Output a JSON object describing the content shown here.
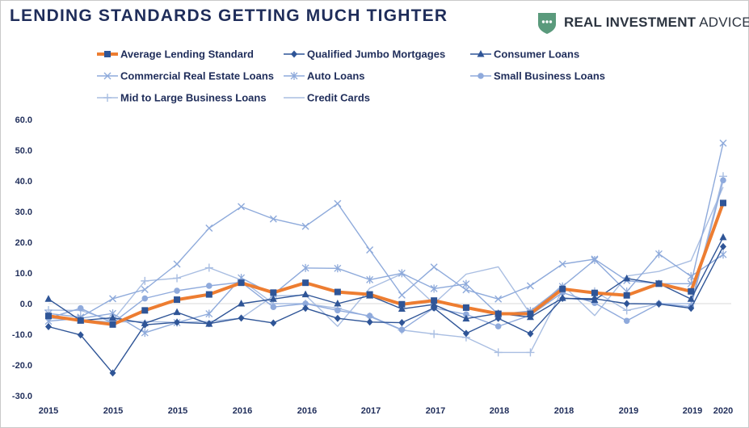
{
  "header": {
    "title": "LENDING STANDARDS GETTING MUCH TIGHTER",
    "brand_bold": "REAL INVESTMENT",
    "brand_light": " ADVICE",
    "brand_icon": "shield-logo-icon",
    "brand_color": "#5a9a7c"
  },
  "chart_data": {
    "type": "line",
    "x": [
      "2015 Q1",
      "2015 Q2",
      "2015 Q3",
      "2015 Q4",
      "2016 Q1",
      "2016 Q2",
      "2016 Q3",
      "2016 Q4",
      "2017 Q1",
      "2017 Q2",
      "2017 Q3",
      "2017 Q4",
      "2018 Q1",
      "2018 Q2",
      "2018 Q3",
      "2018 Q4",
      "2019 Q1",
      "2019 Q2",
      "2019 Q3",
      "2019 Q4",
      "2020 Q1",
      "2020 Q2"
    ],
    "x_tick_labels": [
      "2015",
      "2015",
      "2015",
      "2016",
      "2016",
      "2017",
      "2017",
      "2018",
      "2018",
      "2019",
      "2019",
      "2020"
    ],
    "y_tick_labels": [
      "60.0",
      "50.0",
      "40.0",
      "30.0",
      "20.0",
      "10.0",
      "0.0",
      "-10.0",
      "-20.0",
      "-30.0"
    ],
    "ylim": [
      -30,
      60
    ],
    "grid": "horizontal at 0 only",
    "legend_position": "top",
    "series": [
      {
        "name": "Average Lending Standard",
        "color": "#ed7d31",
        "width": 4,
        "marker": "square",
        "values": [
          -4,
          -5.5,
          -6.8,
          -2.2,
          1.3,
          3,
          6.8,
          3.6,
          6.8,
          3.8,
          3,
          -0.2,
          1,
          -1.3,
          -3.3,
          -3.3,
          4.8,
          3.5,
          2.7,
          6.5,
          4,
          32.8
        ]
      },
      {
        "name": "Qualified Jumbo Mortgages",
        "color": "#2f5597",
        "width": 1.4,
        "marker": "diamond",
        "values": [
          -7.5,
          -10.2,
          -22.6,
          -6.9,
          -6.1,
          -6.5,
          -4.7,
          -6.3,
          -1.5,
          -4.8,
          -6,
          -6.2,
          -1.4,
          -9.7,
          -4.8,
          -9.8,
          1.7,
          1.6,
          0,
          -0.1,
          -1.5,
          18.6
        ]
      },
      {
        "name": "Consumer Loans",
        "color": "#2f5597",
        "width": 1.4,
        "marker": "triangle",
        "values": [
          1.5,
          -5.5,
          -4.6,
          -6.4,
          -2.8,
          -6.6,
          0,
          1.5,
          3,
          0,
          2.6,
          -1.7,
          -0.3,
          -4.9,
          -3.2,
          -4.4,
          1.8,
          1.2,
          8.2,
          6.5,
          1.5,
          21.6
        ]
      },
      {
        "name": "Commercial Real Estate Loans",
        "color": "#8eaadb",
        "width": 1.4,
        "marker": "x",
        "values": [
          -3.2,
          -4.4,
          1.6,
          4.6,
          12.9,
          24.6,
          31.6,
          27.6,
          25.2,
          32.6,
          17.5,
          2.8,
          11.9,
          4.5,
          1.5,
          5.8,
          12.9,
          14.5,
          7.5,
          6.5,
          6.5,
          52.3
        ]
      },
      {
        "name": "Auto Loans",
        "color": "#8eaadb",
        "width": 1.4,
        "marker": "asterisk",
        "values": [
          -5.7,
          -4.8,
          -3.2,
          -9.5,
          -6.2,
          -3.3,
          8.4,
          3,
          11.6,
          11.5,
          7.8,
          9.9,
          4.9,
          6.4,
          -3.5,
          -2.4,
          5.6,
          14.2,
          3.9,
          16.2,
          8.9,
          16
        ]
      },
      {
        "name": "Small Business Loans",
        "color": "#8faadc",
        "width": 1.4,
        "marker": "circle",
        "values": [
          -4.7,
          -1.5,
          -6.3,
          1.7,
          4.2,
          5.8,
          7,
          -1.1,
          0,
          -2.2,
          -4,
          -8.5,
          -1.4,
          -3.5,
          -7.4,
          -3.8,
          3.6,
          0.2,
          -5.6,
          0,
          -1,
          40.2
        ]
      },
      {
        "name": "Mid to Large Business Loans",
        "color": "#a9bee2",
        "width": 1.4,
        "marker": "plus",
        "values": [
          -2.1,
          -2.2,
          -5.5,
          7.4,
          8.3,
          11.7,
          7.7,
          0,
          0,
          -1.5,
          -4.2,
          -8.6,
          -9.9,
          -11,
          -15.9,
          -15.9,
          4.5,
          4,
          -2.2,
          0,
          0,
          41.5
        ]
      },
      {
        "name": "Credit Cards",
        "color": "#a9bee2",
        "width": 1.4,
        "marker": "none",
        "values": [
          -4.7,
          -5.4,
          -6,
          -5.8,
          -6.1,
          -5.8,
          -4.7,
          2.5,
          2.8,
          -7.4,
          5,
          9.7,
          0,
          9.6,
          12,
          -3.4,
          6.1,
          -3.9,
          9,
          10.5,
          14,
          38
        ]
      }
    ]
  }
}
